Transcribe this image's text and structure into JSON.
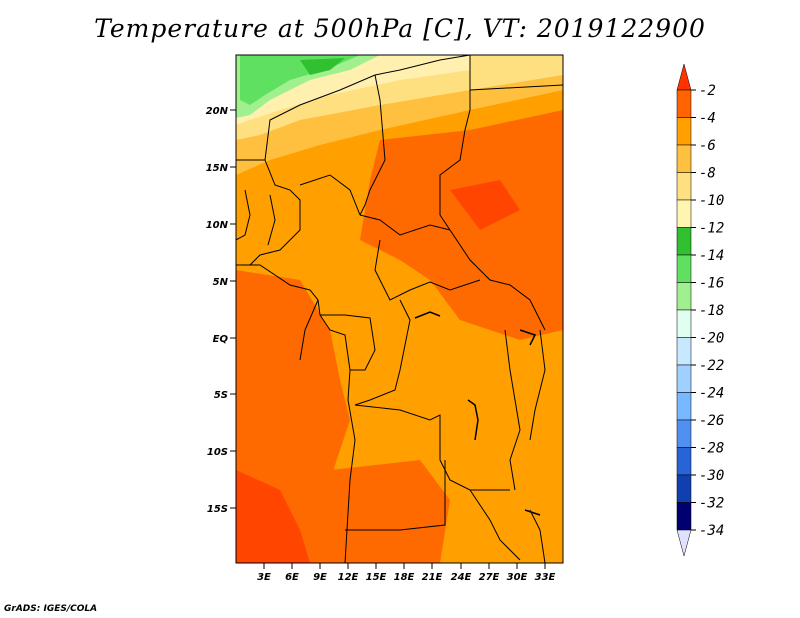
{
  "title": "Temperature at 500hPa [C], VT: 2019122900",
  "credit": "GrADS: IGES/COLA",
  "map": {
    "lat_labels": [
      "20N",
      "15N",
      "10N",
      "5N",
      "EQ",
      "5S",
      "10S",
      "15S"
    ],
    "lon_labels": [
      "3E",
      "6E",
      "9E",
      "12E",
      "15E",
      "18E",
      "21E",
      "24E",
      "27E",
      "30E",
      "33E"
    ],
    "lon_range": [
      0,
      35
    ],
    "lat_range": [
      -20,
      25
    ],
    "colors": {
      "warmest": "#ff4500",
      "warm": "#ff6a00",
      "mid": "#ffa000",
      "cool": "#ffc040",
      "cooler": "#ffe080",
      "pale": "#fff0b0",
      "green_light": "#a0f090",
      "green": "#60e060",
      "green_dark": "#30c030"
    }
  },
  "colorbar": {
    "labels": [
      "-2",
      "-4",
      "-6",
      "-8",
      "-10",
      "-12",
      "-14",
      "-16",
      "-18",
      "-20",
      "-22",
      "-24",
      "-26",
      "-28",
      "-30",
      "-32",
      "-34"
    ],
    "colors": [
      "#ff3200",
      "#ff6400",
      "#ffa000",
      "#ffc040",
      "#ffe080",
      "#fff5b0",
      "#30c030",
      "#60e060",
      "#a0f090",
      "#e0fff0",
      "#c8e8ff",
      "#a0d0ff",
      "#78b8ff",
      "#5090f0",
      "#2864d8",
      "#1040b0",
      "#000070"
    ],
    "top_arrow_color": "#ff3200",
    "bottom_arrow_color": "#e0e0ff"
  }
}
